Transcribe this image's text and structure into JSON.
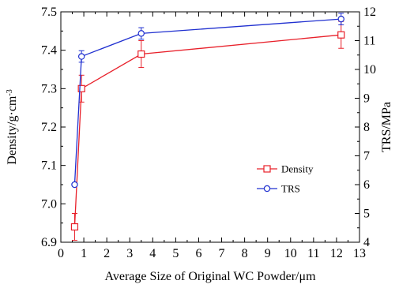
{
  "chart_data": {
    "type": "line",
    "xlabel": "Average Size of Original WC Powder/μm",
    "ylabel_left_main": "Density/g",
    "ylabel_left_dot": "·",
    "ylabel_left_unit": "cm",
    "ylabel_left_sup": "-3",
    "ylabel_right": "TRS/MPa",
    "xlim": [
      0,
      13
    ],
    "ylim_left": [
      6.9,
      7.5
    ],
    "ylim_right": [
      4,
      12
    ],
    "x_ticks": [
      "0",
      "1",
      "2",
      "3",
      "4",
      "5",
      "6",
      "7",
      "8",
      "9",
      "10",
      "11",
      "12",
      "13"
    ],
    "y_left_ticks": [
      "6.9",
      "7.0",
      "7.1",
      "7.2",
      "7.3",
      "7.4",
      "7.5"
    ],
    "y_right_ticks": [
      "4",
      "5",
      "6",
      "7",
      "8",
      "9",
      "10",
      "11",
      "12"
    ],
    "legend_position": "center-right",
    "series": [
      {
        "name": "Density",
        "axis": "left",
        "color": "#e8202a",
        "marker": "square",
        "x": [
          0.6,
          0.9,
          3.5,
          12.2
        ],
        "y": [
          6.94,
          7.3,
          7.39,
          7.44
        ],
        "err": [
          0.035,
          0.035,
          0.035,
          0.035
        ]
      },
      {
        "name": "TRS",
        "axis": "right",
        "color": "#2030d0",
        "marker": "circle",
        "x": [
          0.6,
          0.9,
          3.5,
          12.2
        ],
        "y": [
          6.0,
          10.45,
          11.25,
          11.75
        ],
        "err": [
          0.0,
          0.2,
          0.2,
          0.2
        ]
      }
    ]
  }
}
